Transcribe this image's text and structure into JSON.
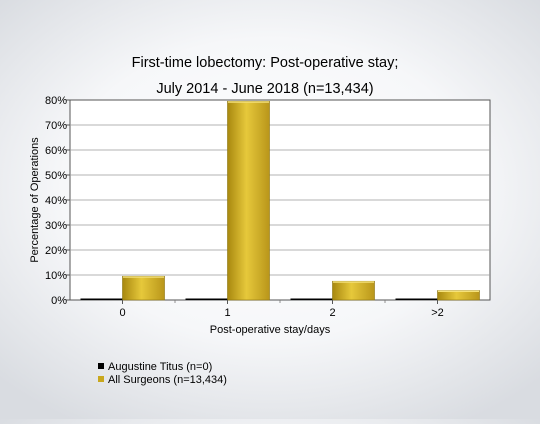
{
  "chart_data": {
    "type": "bar",
    "title_lines": [
      "First-time lobectomy: Post-operative stay;",
      "July 2014 - June 2018 (n=13,434)"
    ],
    "xlabel": "Post-operative stay/days",
    "ylabel": "Percentage of Operations",
    "categories": [
      "0",
      "1",
      "2",
      ">2"
    ],
    "ylim": [
      0,
      80
    ],
    "yticks": [
      "0%",
      "10%",
      "20%",
      "30%",
      "40%",
      "50%",
      "60%",
      "70%",
      "80%"
    ],
    "grid": true,
    "legend_position": "bottom-left",
    "series": [
      {
        "name": "Augustine Titus (n=0)",
        "color": "#000000",
        "values": [
          0,
          0,
          0,
          0
        ]
      },
      {
        "name": "All Surgeons (n=13,434)",
        "color": "#c9a81e",
        "values": [
          9.5,
          79.5,
          7.5,
          3.8
        ]
      }
    ]
  }
}
